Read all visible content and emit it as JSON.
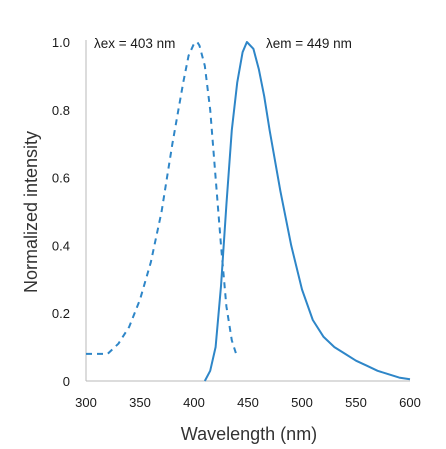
{
  "chart_data": {
    "type": "line",
    "title": "",
    "xlabel": "Wavelength (nm)",
    "ylabel": "Normalized intensity",
    "xlim": [
      300,
      600
    ],
    "ylim": [
      0,
      1.0
    ],
    "x_ticks": [
      "300",
      "350",
      "400",
      "450",
      "500",
      "550",
      "600"
    ],
    "y_ticks": [
      "0",
      "0.2",
      "0.4",
      "0.6",
      "0.8",
      "1.0"
    ],
    "grid": false,
    "line_color": "#2E86C8",
    "annotations": [
      {
        "text": "λex = 403 nm",
        "x": 403
      },
      {
        "text": "λem = 449 nm",
        "x": 449
      }
    ],
    "series": [
      {
        "style": "dashed",
        "x": [
          300,
          320,
          330,
          340,
          350,
          360,
          370,
          380,
          390,
          395,
          400,
          403,
          405,
          410,
          415,
          420,
          425,
          430,
          435,
          440
        ],
        "y": [
          0.08,
          0.08,
          0.11,
          0.16,
          0.24,
          0.35,
          0.5,
          0.7,
          0.88,
          0.96,
          0.995,
          1.0,
          0.99,
          0.93,
          0.8,
          0.6,
          0.4,
          0.22,
          0.12,
          0.07
        ]
      },
      {
        "style": "solid",
        "x": [
          410,
          415,
          420,
          425,
          430,
          435,
          440,
          445,
          449,
          455,
          460,
          465,
          470,
          480,
          490,
          500,
          510,
          520,
          530,
          540,
          550,
          560,
          570,
          580,
          590,
          600
        ],
        "y": [
          0.0,
          0.03,
          0.1,
          0.28,
          0.52,
          0.74,
          0.88,
          0.97,
          1.0,
          0.98,
          0.92,
          0.84,
          0.74,
          0.56,
          0.4,
          0.27,
          0.18,
          0.13,
          0.1,
          0.08,
          0.06,
          0.045,
          0.03,
          0.02,
          0.01,
          0.005
        ]
      }
    ]
  }
}
